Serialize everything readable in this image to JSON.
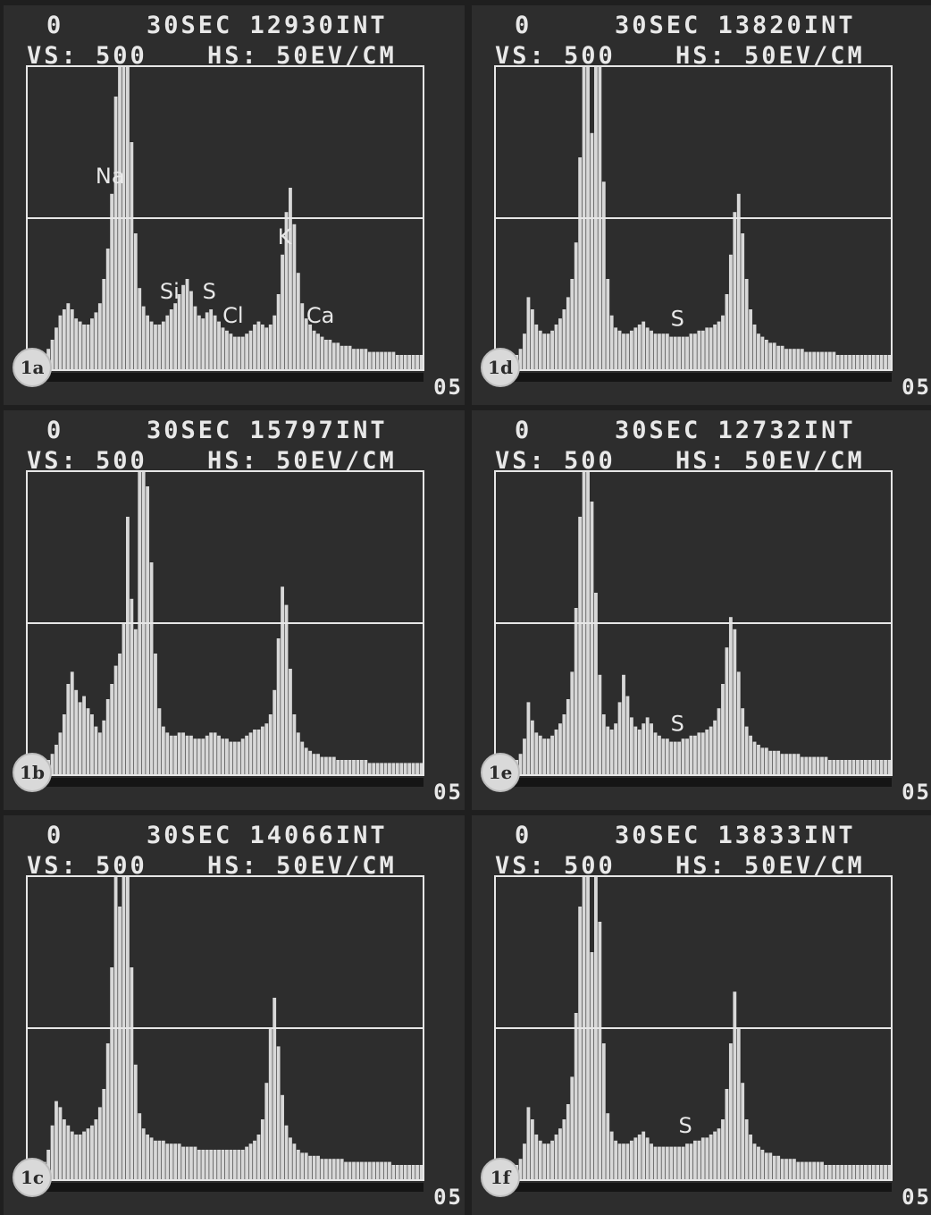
{
  "chart_data": [
    {
      "type": "bar",
      "panel_label": "1a",
      "header": {
        "preset": "0",
        "time_and_counts": "30SEC 12930INT",
        "vertical_scale": "VS: 500",
        "horizontal_scale": "HS: 50EV/CM",
        "corner": "05"
      },
      "peak_labels": [
        {
          "text": "Si",
          "x": 0.36
        },
        {
          "text": "Na",
          "x": 0.21
        },
        {
          "text": "S",
          "x": 0.46
        },
        {
          "text": "Cl",
          "x": 0.52
        },
        {
          "text": "K",
          "x": 0.65
        },
        {
          "text": "Ca",
          "x": 0.74
        }
      ],
      "series": [
        {
          "values": [
            0.03,
            0.03,
            0.04,
            0.04,
            0.05,
            0.07,
            0.1,
            0.14,
            0.18,
            0.2,
            0.22,
            0.2,
            0.17,
            0.16,
            0.15,
            0.15,
            0.17,
            0.19,
            0.22,
            0.3,
            0.4,
            0.58,
            0.9,
            1.0,
            1.0,
            1.0,
            0.75,
            0.45,
            0.27,
            0.21,
            0.18,
            0.16,
            0.15,
            0.15,
            0.16,
            0.18,
            0.2,
            0.22,
            0.25,
            0.28,
            0.3,
            0.26,
            0.21,
            0.18,
            0.17,
            0.19,
            0.2,
            0.18,
            0.16,
            0.14,
            0.13,
            0.12,
            0.11,
            0.11,
            0.11,
            0.12,
            0.13,
            0.15,
            0.16,
            0.15,
            0.14,
            0.15,
            0.18,
            0.25,
            0.38,
            0.52,
            0.6,
            0.48,
            0.32,
            0.22,
            0.17,
            0.15,
            0.13,
            0.12,
            0.11,
            0.1,
            0.1,
            0.09,
            0.09,
            0.08,
            0.08,
            0.08,
            0.07,
            0.07,
            0.07,
            0.07,
            0.06,
            0.06,
            0.06,
            0.06,
            0.06,
            0.06,
            0.06,
            0.05,
            0.05,
            0.05,
            0.05,
            0.05,
            0.05,
            0.05
          ]
        }
      ],
      "grid": "one horizontal line"
    },
    {
      "type": "bar",
      "panel_label": "1b",
      "header": {
        "preset": "0",
        "time_and_counts": "30SEC 15797INT",
        "vertical_scale": "VS: 500",
        "horizontal_scale": "HS: 50EV/CM",
        "corner": "05"
      },
      "peak_labels": [],
      "series": [
        {
          "values": [
            0.02,
            0.02,
            0.03,
            0.03,
            0.04,
            0.05,
            0.07,
            0.1,
            0.14,
            0.2,
            0.3,
            0.34,
            0.28,
            0.24,
            0.26,
            0.22,
            0.2,
            0.16,
            0.14,
            0.18,
            0.25,
            0.3,
            0.36,
            0.4,
            0.5,
            0.85,
            0.58,
            0.48,
            1.0,
            1.0,
            0.95,
            0.7,
            0.4,
            0.22,
            0.16,
            0.14,
            0.13,
            0.13,
            0.14,
            0.14,
            0.13,
            0.13,
            0.12,
            0.12,
            0.12,
            0.13,
            0.14,
            0.14,
            0.13,
            0.12,
            0.12,
            0.11,
            0.11,
            0.11,
            0.12,
            0.13,
            0.14,
            0.15,
            0.15,
            0.16,
            0.17,
            0.2,
            0.28,
            0.45,
            0.62,
            0.56,
            0.35,
            0.2,
            0.14,
            0.11,
            0.09,
            0.08,
            0.07,
            0.07,
            0.06,
            0.06,
            0.06,
            0.06,
            0.05,
            0.05,
            0.05,
            0.05,
            0.05,
            0.05,
            0.05,
            0.05,
            0.04,
            0.04,
            0.04,
            0.04,
            0.04,
            0.04,
            0.04,
            0.04,
            0.04,
            0.04,
            0.04,
            0.04,
            0.04,
            0.04
          ]
        }
      ],
      "grid": "one horizontal line"
    },
    {
      "type": "bar",
      "panel_label": "1c",
      "header": {
        "preset": "0",
        "time_and_counts": "30SEC 14066INT",
        "vertical_scale": "VS: 500",
        "horizontal_scale": "HS: 50EV/CM",
        "corner": "05"
      },
      "peak_labels": [],
      "series": [
        {
          "values": [
            0.02,
            0.02,
            0.03,
            0.04,
            0.06,
            0.1,
            0.18,
            0.26,
            0.24,
            0.2,
            0.18,
            0.16,
            0.15,
            0.15,
            0.16,
            0.17,
            0.18,
            0.2,
            0.24,
            0.3,
            0.45,
            0.7,
            1.0,
            0.9,
            1.0,
            1.0,
            0.7,
            0.38,
            0.22,
            0.17,
            0.15,
            0.14,
            0.13,
            0.13,
            0.13,
            0.12,
            0.12,
            0.12,
            0.12,
            0.11,
            0.11,
            0.11,
            0.11,
            0.1,
            0.1,
            0.1,
            0.1,
            0.1,
            0.1,
            0.1,
            0.1,
            0.1,
            0.1,
            0.1,
            0.1,
            0.11,
            0.12,
            0.13,
            0.15,
            0.2,
            0.32,
            0.5,
            0.6,
            0.44,
            0.28,
            0.18,
            0.14,
            0.12,
            0.1,
            0.09,
            0.09,
            0.08,
            0.08,
            0.08,
            0.07,
            0.07,
            0.07,
            0.07,
            0.07,
            0.07,
            0.06,
            0.06,
            0.06,
            0.06,
            0.06,
            0.06,
            0.06,
            0.06,
            0.06,
            0.06,
            0.06,
            0.06,
            0.05,
            0.05,
            0.05,
            0.05,
            0.05,
            0.05,
            0.05,
            0.05
          ]
        }
      ],
      "grid": "one horizontal line"
    },
    {
      "type": "bar",
      "panel_label": "1d",
      "header": {
        "preset": "0",
        "time_and_counts": "30SEC 13820INT",
        "vertical_scale": "VS: 500",
        "horizontal_scale": "HS: 50EV/CM",
        "corner": "05"
      },
      "peak_labels": [
        {
          "text": "S",
          "x": 0.46
        }
      ],
      "series": [
        {
          "values": [
            0.02,
            0.02,
            0.03,
            0.03,
            0.04,
            0.05,
            0.07,
            0.12,
            0.24,
            0.2,
            0.15,
            0.13,
            0.12,
            0.12,
            0.13,
            0.15,
            0.17,
            0.2,
            0.24,
            0.3,
            0.42,
            0.7,
            1.0,
            1.0,
            0.78,
            1.0,
            1.0,
            0.62,
            0.3,
            0.18,
            0.14,
            0.13,
            0.12,
            0.12,
            0.13,
            0.14,
            0.15,
            0.16,
            0.14,
            0.13,
            0.12,
            0.12,
            0.12,
            0.12,
            0.11,
            0.11,
            0.11,
            0.11,
            0.11,
            0.12,
            0.12,
            0.13,
            0.13,
            0.14,
            0.14,
            0.15,
            0.16,
            0.18,
            0.25,
            0.38,
            0.52,
            0.58,
            0.45,
            0.3,
            0.2,
            0.15,
            0.12,
            0.11,
            0.1,
            0.09,
            0.09,
            0.08,
            0.08,
            0.07,
            0.07,
            0.07,
            0.07,
            0.07,
            0.06,
            0.06,
            0.06,
            0.06,
            0.06,
            0.06,
            0.06,
            0.06,
            0.05,
            0.05,
            0.05,
            0.05,
            0.05,
            0.05,
            0.05,
            0.05,
            0.05,
            0.05,
            0.05,
            0.05,
            0.05,
            0.05
          ]
        }
      ],
      "grid": "one horizontal line"
    },
    {
      "type": "bar",
      "panel_label": "1e",
      "header": {
        "preset": "0",
        "time_and_counts": "30SEC 12732INT",
        "vertical_scale": "VS: 500",
        "horizontal_scale": "HS: 50EV/CM",
        "corner": "05"
      },
      "peak_labels": [
        {
          "text": "S",
          "x": 0.46
        }
      ],
      "series": [
        {
          "values": [
            0.02,
            0.02,
            0.03,
            0.03,
            0.04,
            0.05,
            0.07,
            0.12,
            0.24,
            0.18,
            0.14,
            0.13,
            0.12,
            0.12,
            0.13,
            0.15,
            0.17,
            0.2,
            0.25,
            0.34,
            0.55,
            0.85,
            1.0,
            1.0,
            0.9,
            0.6,
            0.33,
            0.2,
            0.16,
            0.15,
            0.17,
            0.24,
            0.33,
            0.26,
            0.19,
            0.16,
            0.15,
            0.17,
            0.19,
            0.17,
            0.14,
            0.13,
            0.12,
            0.12,
            0.11,
            0.11,
            0.11,
            0.12,
            0.12,
            0.13,
            0.13,
            0.14,
            0.14,
            0.15,
            0.16,
            0.18,
            0.22,
            0.3,
            0.42,
            0.52,
            0.48,
            0.34,
            0.22,
            0.16,
            0.13,
            0.11,
            0.1,
            0.09,
            0.09,
            0.08,
            0.08,
            0.08,
            0.07,
            0.07,
            0.07,
            0.07,
            0.07,
            0.06,
            0.06,
            0.06,
            0.06,
            0.06,
            0.06,
            0.06,
            0.05,
            0.05,
            0.05,
            0.05,
            0.05,
            0.05,
            0.05,
            0.05,
            0.05,
            0.05,
            0.05,
            0.05,
            0.05,
            0.05,
            0.05,
            0.05
          ]
        }
      ],
      "grid": "one horizontal line"
    },
    {
      "type": "bar",
      "panel_label": "1f",
      "header": {
        "preset": "0",
        "time_and_counts": "30SEC 13833INT",
        "vertical_scale": "VS: 500",
        "horizontal_scale": "HS: 50EV/CM",
        "corner": "05"
      },
      "peak_labels": [
        {
          "text": "S",
          "x": 0.48
        }
      ],
      "series": [
        {
          "values": [
            0.02,
            0.02,
            0.03,
            0.03,
            0.04,
            0.05,
            0.07,
            0.12,
            0.24,
            0.2,
            0.15,
            0.13,
            0.12,
            0.12,
            0.13,
            0.15,
            0.17,
            0.2,
            0.25,
            0.34,
            0.55,
            0.9,
            1.0,
            1.0,
            0.75,
            1.0,
            0.85,
            0.45,
            0.22,
            0.16,
            0.13,
            0.12,
            0.12,
            0.12,
            0.13,
            0.14,
            0.15,
            0.16,
            0.14,
            0.12,
            0.11,
            0.11,
            0.11,
            0.11,
            0.11,
            0.11,
            0.11,
            0.11,
            0.12,
            0.12,
            0.13,
            0.13,
            0.14,
            0.14,
            0.15,
            0.16,
            0.17,
            0.2,
            0.3,
            0.45,
            0.62,
            0.5,
            0.32,
            0.2,
            0.15,
            0.12,
            0.11,
            0.1,
            0.09,
            0.09,
            0.08,
            0.08,
            0.07,
            0.07,
            0.07,
            0.07,
            0.06,
            0.06,
            0.06,
            0.06,
            0.06,
            0.06,
            0.06,
            0.05,
            0.05,
            0.05,
            0.05,
            0.05,
            0.05,
            0.05,
            0.05,
            0.05,
            0.05,
            0.05,
            0.05,
            0.05,
            0.05,
            0.05,
            0.05,
            0.05
          ]
        }
      ],
      "grid": "one horizontal line"
    }
  ],
  "colors": {
    "background": "#2d2d2d",
    "trace": "#d8d8d8",
    "frame": "#e6e6e6",
    "page": "#1f1f1f"
  }
}
